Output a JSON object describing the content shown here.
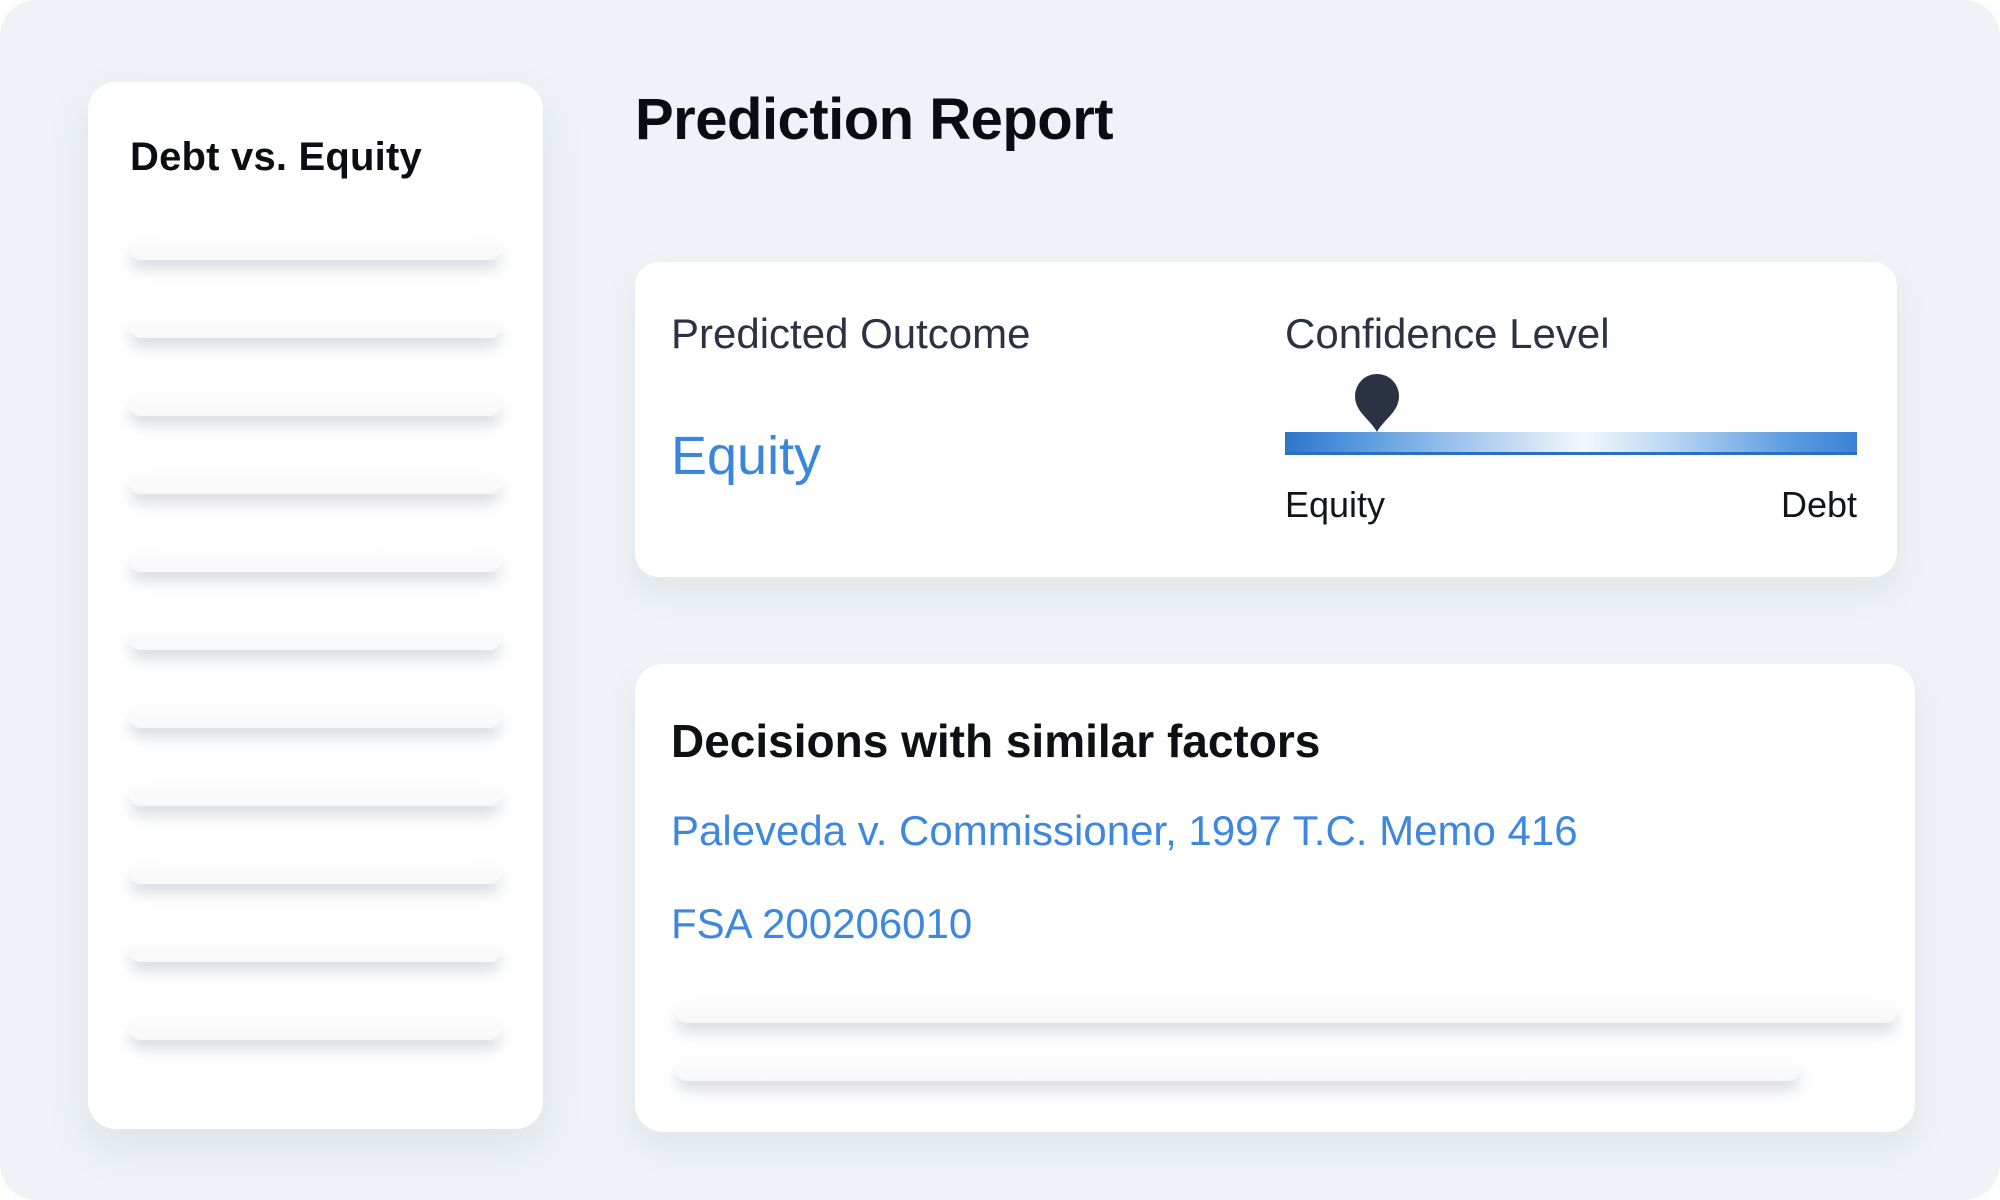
{
  "header": {
    "title": "Prediction Report"
  },
  "sidebar": {
    "title": "Debt vs. Equity",
    "skeleton_rows": 11
  },
  "prediction_card": {
    "outcome_label": "Predicted Outcome",
    "outcome_value": "Equity",
    "confidence_label": "Confidence Level",
    "slider": {
      "position_percent": 16,
      "left_label": "Equity",
      "right_label": "Debt"
    }
  },
  "decisions_card": {
    "title": "Decisions with similar factors",
    "links": [
      "Paleveda v. Commissioner, 1997 T.C. Memo 416",
      "FSA 200206010"
    ],
    "skeleton_rows": 2
  },
  "colors": {
    "background": "#eff3f7",
    "card": "#ffffff",
    "accent_blue": "#3a86dd",
    "link_blue": "#3d87e0",
    "label_dark": "#2b3342",
    "pin_dark": "#2a3244",
    "slider_gradient_ends": "#3a82d6"
  }
}
